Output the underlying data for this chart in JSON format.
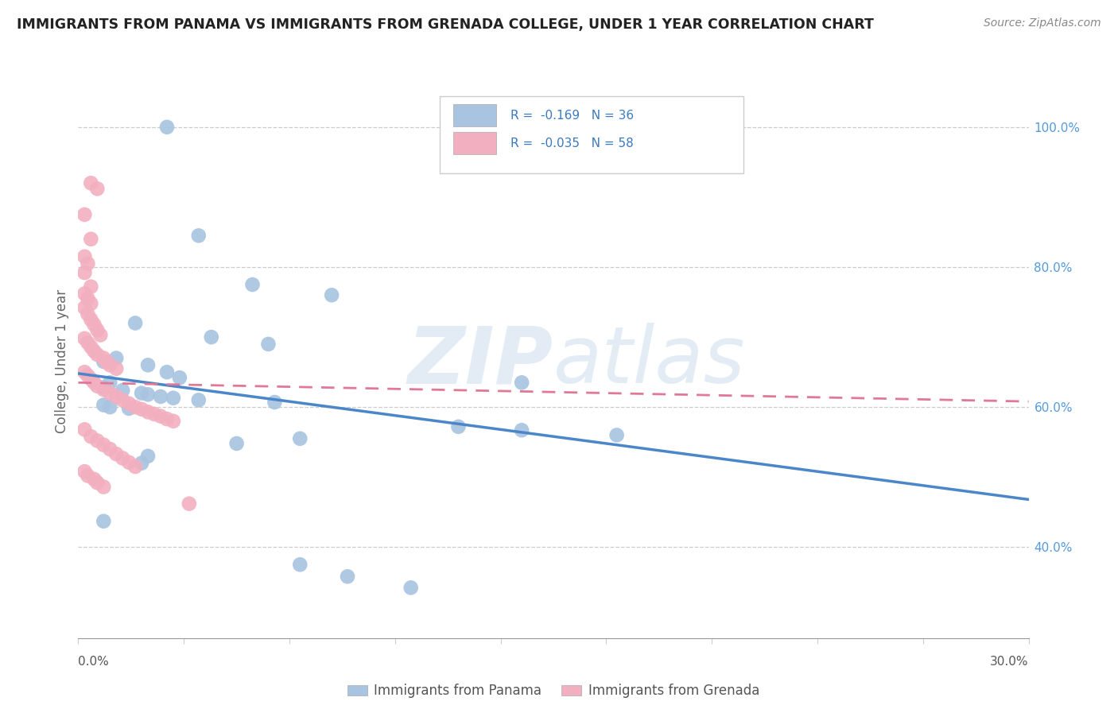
{
  "title": "IMMIGRANTS FROM PANAMA VS IMMIGRANTS FROM GRENADA COLLEGE, UNDER 1 YEAR CORRELATION CHART",
  "source": "Source: ZipAtlas.com",
  "ylabel": "College, Under 1 year",
  "ylabel_right_ticks": [
    "100.0%",
    "80.0%",
    "60.0%",
    "40.0%"
  ],
  "ylabel_right_vals": [
    1.0,
    0.8,
    0.6,
    0.4
  ],
  "xmin": 0.0,
  "xmax": 0.3,
  "ymin": 0.27,
  "ymax": 1.06,
  "legend_blue_r": "-0.169",
  "legend_blue_n": "36",
  "legend_pink_r": "-0.035",
  "legend_pink_n": "58",
  "legend_label_blue": "Immigrants from Panama",
  "legend_label_pink": "Immigrants from Grenada",
  "watermark_zip": "ZIP",
  "watermark_atlas": "atlas",
  "blue_color": "#a8c4e0",
  "pink_color": "#f2afc0",
  "blue_line_color": "#4a86c8",
  "pink_line_color": "#e07898",
  "blue_scatter": [
    [
      0.028,
      1.0
    ],
    [
      0.038,
      0.845
    ],
    [
      0.055,
      0.775
    ],
    [
      0.08,
      0.76
    ],
    [
      0.018,
      0.72
    ],
    [
      0.042,
      0.7
    ],
    [
      0.06,
      0.69
    ],
    [
      0.012,
      0.67
    ],
    [
      0.008,
      0.665
    ],
    [
      0.022,
      0.66
    ],
    [
      0.028,
      0.65
    ],
    [
      0.032,
      0.642
    ],
    [
      0.01,
      0.635
    ],
    [
      0.008,
      0.628
    ],
    [
      0.014,
      0.624
    ],
    [
      0.02,
      0.62
    ],
    [
      0.022,
      0.618
    ],
    [
      0.026,
      0.615
    ],
    [
      0.03,
      0.613
    ],
    [
      0.038,
      0.61
    ],
    [
      0.062,
      0.607
    ],
    [
      0.008,
      0.603
    ],
    [
      0.01,
      0.6
    ],
    [
      0.016,
      0.598
    ],
    [
      0.14,
      0.635
    ],
    [
      0.12,
      0.572
    ],
    [
      0.14,
      0.567
    ],
    [
      0.17,
      0.56
    ],
    [
      0.07,
      0.555
    ],
    [
      0.05,
      0.548
    ],
    [
      0.022,
      0.53
    ],
    [
      0.02,
      0.52
    ],
    [
      0.008,
      0.437
    ],
    [
      0.07,
      0.375
    ],
    [
      0.085,
      0.358
    ],
    [
      0.105,
      0.342
    ]
  ],
  "pink_scatter": [
    [
      0.004,
      0.92
    ],
    [
      0.006,
      0.912
    ],
    [
      0.002,
      0.875
    ],
    [
      0.004,
      0.84
    ],
    [
      0.002,
      0.815
    ],
    [
      0.003,
      0.805
    ],
    [
      0.002,
      0.792
    ],
    [
      0.004,
      0.772
    ],
    [
      0.002,
      0.762
    ],
    [
      0.003,
      0.755
    ],
    [
      0.004,
      0.748
    ],
    [
      0.002,
      0.742
    ],
    [
      0.003,
      0.733
    ],
    [
      0.004,
      0.725
    ],
    [
      0.005,
      0.718
    ],
    [
      0.006,
      0.71
    ],
    [
      0.007,
      0.703
    ],
    [
      0.002,
      0.698
    ],
    [
      0.003,
      0.692
    ],
    [
      0.004,
      0.686
    ],
    [
      0.005,
      0.68
    ],
    [
      0.006,
      0.675
    ],
    [
      0.008,
      0.67
    ],
    [
      0.009,
      0.665
    ],
    [
      0.01,
      0.66
    ],
    [
      0.012,
      0.655
    ],
    [
      0.002,
      0.65
    ],
    [
      0.003,
      0.645
    ],
    [
      0.004,
      0.64
    ],
    [
      0.005,
      0.635
    ],
    [
      0.006,
      0.63
    ],
    [
      0.008,
      0.625
    ],
    [
      0.01,
      0.62
    ],
    [
      0.012,
      0.615
    ],
    [
      0.014,
      0.61
    ],
    [
      0.016,
      0.605
    ],
    [
      0.018,
      0.6
    ],
    [
      0.02,
      0.597
    ],
    [
      0.022,
      0.593
    ],
    [
      0.024,
      0.59
    ],
    [
      0.026,
      0.587
    ],
    [
      0.028,
      0.583
    ],
    [
      0.03,
      0.58
    ],
    [
      0.002,
      0.568
    ],
    [
      0.004,
      0.558
    ],
    [
      0.006,
      0.552
    ],
    [
      0.008,
      0.546
    ],
    [
      0.01,
      0.54
    ],
    [
      0.012,
      0.533
    ],
    [
      0.014,
      0.527
    ],
    [
      0.016,
      0.521
    ],
    [
      0.018,
      0.515
    ],
    [
      0.002,
      0.508
    ],
    [
      0.003,
      0.502
    ],
    [
      0.005,
      0.497
    ],
    [
      0.006,
      0.492
    ],
    [
      0.008,
      0.486
    ],
    [
      0.035,
      0.462
    ]
  ],
  "blue_trendline": [
    [
      0.0,
      0.648
    ],
    [
      0.3,
      0.468
    ]
  ],
  "pink_trendline": [
    [
      0.0,
      0.635
    ],
    [
      0.3,
      0.608
    ]
  ]
}
